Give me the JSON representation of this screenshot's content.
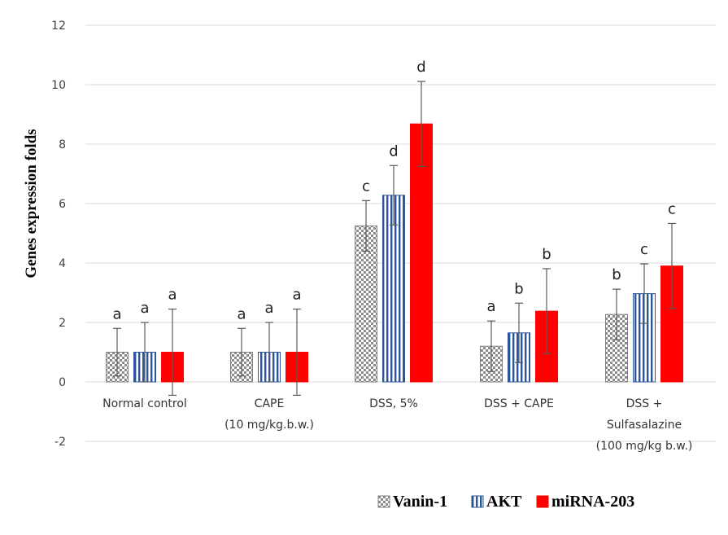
{
  "chart_data": {
    "type": "bar",
    "ylabel": "Genes expression folds",
    "xlabel": "",
    "ylim": [
      -2,
      12
    ],
    "yticks": [
      -2,
      0,
      2,
      4,
      6,
      8,
      10,
      12
    ],
    "grid": "horizontal",
    "legend_position": "bottom-right",
    "categories": [
      [
        "Normal control"
      ],
      [
        "CAPE",
        "(10 mg/kg.b.w.)"
      ],
      [
        "DSS, 5%"
      ],
      [
        "DSS + CAPE"
      ],
      [
        "DSS +",
        "Sulfasalazine",
        "(100 mg/kg b.w.)"
      ]
    ],
    "series": [
      {
        "name": "Vanin-1",
        "pattern": "checker",
        "color": "#a6a6a6",
        "values": [
          1.0,
          1.0,
          5.25,
          1.2,
          2.27
        ],
        "errors": [
          0.8,
          0.8,
          0.85,
          0.85,
          0.85
        ],
        "letters": [
          "a",
          "a",
          "c",
          "a",
          "b"
        ]
      },
      {
        "name": "AKT",
        "pattern": "vertical-stripes",
        "color": "#2e5597",
        "values": [
          1.0,
          1.0,
          6.28,
          1.65,
          2.97
        ],
        "errors": [
          1.0,
          1.0,
          1.0,
          1.0,
          1.0
        ],
        "letters": [
          "a",
          "a",
          "d",
          "b",
          "c"
        ]
      },
      {
        "name": "miRNA-203",
        "pattern": "solid",
        "color": "#ff0000",
        "values": [
          1.0,
          1.0,
          8.68,
          2.38,
          3.9
        ],
        "errors": [
          1.45,
          1.45,
          1.43,
          1.43,
          1.43
        ],
        "letters": [
          "a",
          "a",
          "d",
          "b",
          "c"
        ]
      }
    ]
  }
}
